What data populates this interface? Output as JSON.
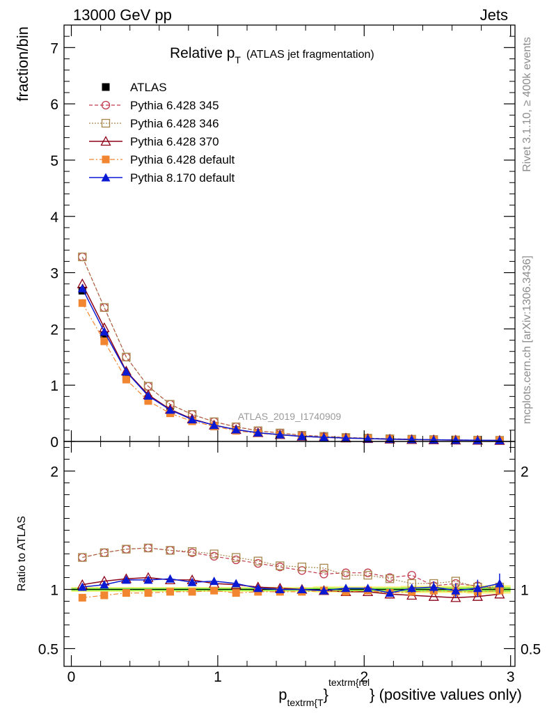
{
  "header": {
    "left": "13000 GeV pp",
    "right": "Jets"
  },
  "side_labels": {
    "rivet": "Rivet 3.1.10, ≥ 400k events",
    "mcplots": "mcplots.cern.ch [arXiv:1306.3436]"
  },
  "watermark": "ATLAS_2019_I1740909",
  "colors": {
    "atlas": "#000000",
    "p345": "#c0394b",
    "p346": "#a6864a",
    "p370": "#8b0016",
    "p6def": "#f28530",
    "p8": "#0a1ad4",
    "band_green": "#33cc33",
    "band_yellow": "#f5f57a"
  },
  "chart_data": [
    {
      "type": "line",
      "title": "Relative p",
      "title_sub": "T",
      "title_note": "(ATLAS jet fragmentation)",
      "ylabel": "fraction/bin",
      "xlim": [
        -0.05,
        3.03
      ],
      "ylim": [
        0,
        7.4
      ],
      "yticks": [
        0,
        1,
        2,
        3,
        4,
        5,
        6,
        7
      ],
      "x": [
        0.075,
        0.225,
        0.375,
        0.525,
        0.675,
        0.825,
        0.975,
        1.125,
        1.275,
        1.425,
        1.575,
        1.725,
        1.875,
        2.025,
        2.175,
        2.325,
        2.475,
        2.625,
        2.775,
        2.925
      ],
      "series": [
        {
          "name": "ATLAS",
          "key": "atlas",
          "values": [
            2.68,
            1.88,
            1.14,
            0.75,
            0.52,
            0.37,
            0.27,
            0.2,
            0.15,
            0.12,
            0.09,
            0.075,
            0.06,
            0.05,
            0.042,
            0.035,
            0.03,
            0.025,
            0.022,
            0.019
          ]
        },
        {
          "name": "Pythia 6.428 345",
          "key": "p345",
          "values": [
            3.28,
            2.38,
            1.5,
            0.98,
            0.66,
            0.48,
            0.35,
            0.26,
            0.19,
            0.15,
            0.11,
            0.09,
            0.07,
            0.058,
            0.048,
            0.04,
            0.033,
            0.027,
            0.023,
            0.02
          ]
        },
        {
          "name": "Pythia 6.428 346",
          "key": "p346",
          "values": [
            3.28,
            2.38,
            1.5,
            0.98,
            0.66,
            0.48,
            0.35,
            0.26,
            0.19,
            0.15,
            0.11,
            0.09,
            0.07,
            0.058,
            0.048,
            0.04,
            0.033,
            0.027,
            0.023,
            0.02
          ]
        },
        {
          "name": "Pythia 6.428 370",
          "key": "p370",
          "values": [
            2.8,
            2.02,
            1.25,
            0.83,
            0.57,
            0.4,
            0.29,
            0.21,
            0.155,
            0.12,
            0.09,
            0.075,
            0.06,
            0.05,
            0.04,
            0.033,
            0.028,
            0.023,
            0.02,
            0.018
          ]
        },
        {
          "name": "Pythia 6.428 default",
          "key": "p6def",
          "values": [
            2.46,
            1.78,
            1.1,
            0.72,
            0.5,
            0.36,
            0.27,
            0.19,
            0.145,
            0.115,
            0.088,
            0.073,
            0.058,
            0.049,
            0.041,
            0.034,
            0.029,
            0.024,
            0.021,
            0.018
          ]
        },
        {
          "name": "Pythia 8.170 default",
          "key": "p8",
          "values": [
            2.72,
            1.95,
            1.24,
            0.81,
            0.56,
            0.39,
            0.29,
            0.21,
            0.155,
            0.12,
            0.09,
            0.075,
            0.06,
            0.05,
            0.041,
            0.035,
            0.03,
            0.025,
            0.022,
            0.019
          ]
        }
      ]
    },
    {
      "type": "line",
      "ylabel": "Ratio to ATLAS",
      "xlabel_main": "p",
      "xlabel_sub": "textrm{T",
      "xlabel_sup": "textrm{rel",
      "xlabel_tail": "} (positive values only)",
      "xlim": [
        -0.05,
        3.03
      ],
      "ylim": [
        0.35,
        2.25
      ],
      "yticks": [
        {
          "value": 0.5,
          "label": "0.5"
        },
        {
          "value": 1,
          "label": "1"
        },
        {
          "value": 2,
          "label": "2"
        }
      ],
      "xticks": [
        {
          "value": 0,
          "label": "0"
        },
        {
          "value": 1,
          "label": "1"
        },
        {
          "value": 2,
          "label": "2"
        },
        {
          "value": 3,
          "label": "3"
        }
      ],
      "x": [
        0.075,
        0.225,
        0.375,
        0.525,
        0.675,
        0.825,
        0.975,
        1.125,
        1.275,
        1.425,
        1.575,
        1.725,
        1.875,
        2.025,
        2.175,
        2.325,
        2.475,
        2.625,
        2.775,
        2.925
      ],
      "band_halfwidth": [
        0.02,
        0.02,
        0.02,
        0.02,
        0.02,
        0.02,
        0.02,
        0.02,
        0.02,
        0.02,
        0.02,
        0.025,
        0.025,
        0.025,
        0.025,
        0.03,
        0.03,
        0.03,
        0.035,
        0.035
      ],
      "band_inner_halfwidth": [
        0.012,
        0.012,
        0.012,
        0.012,
        0.012,
        0.012,
        0.012,
        0.012,
        0.012,
        0.012,
        0.012,
        0.015,
        0.015,
        0.015,
        0.015,
        0.018,
        0.018,
        0.018,
        0.02,
        0.02
      ],
      "series": [
        {
          "name": "Pythia 6.428 345",
          "key": "p345",
          "values": [
            1.27,
            1.31,
            1.34,
            1.35,
            1.33,
            1.31,
            1.28,
            1.25,
            1.22,
            1.19,
            1.16,
            1.13,
            1.14,
            1.14,
            1.1,
            1.12,
            1.03,
            1.05,
            1.03,
            1.0
          ]
        },
        {
          "name": "Pythia 6.428 346",
          "key": "p346",
          "values": [
            1.27,
            1.31,
            1.34,
            1.35,
            1.33,
            1.32,
            1.3,
            1.27,
            1.24,
            1.2,
            1.19,
            1.18,
            1.12,
            1.12,
            1.09,
            1.05,
            1.05,
            1.07,
            1.02,
            1.02
          ]
        },
        {
          "name": "Pythia 6.428 370",
          "key": "p370",
          "values": [
            1.04,
            1.07,
            1.09,
            1.1,
            1.08,
            1.08,
            1.05,
            1.04,
            1.02,
            1.01,
            1.0,
            0.99,
            0.98,
            0.98,
            0.96,
            0.95,
            0.94,
            0.93,
            0.94,
            0.96
          ]
        },
        {
          "name": "Pythia 6.428 default",
          "key": "p6def",
          "values": [
            0.93,
            0.95,
            0.97,
            0.97,
            0.98,
            0.98,
            0.99,
            0.97,
            0.98,
            0.98,
            0.98,
            0.99,
            0.98,
            0.99,
            0.97,
            0.98,
            0.99,
            0.98,
            0.98,
            0.99
          ]
        },
        {
          "name": "Pythia 8.170 default",
          "key": "p8",
          "values": [
            1.02,
            1.04,
            1.08,
            1.08,
            1.09,
            1.06,
            1.07,
            1.05,
            1.01,
            1.0,
            1.0,
            0.99,
            1.01,
            1.01,
            0.97,
            1.01,
            1.02,
            0.99,
            1.01,
            1.05
          ]
        }
      ]
    }
  ]
}
